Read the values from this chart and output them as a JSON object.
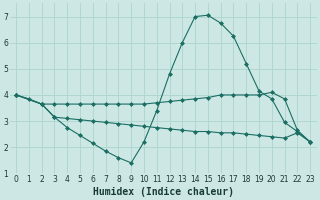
{
  "xlabel": "Humidex (Indice chaleur)",
  "bg_color": "#cde8e4",
  "grid_color": "#b0d8d0",
  "line_color": "#1a6e64",
  "xlim": [
    -0.5,
    23.5
  ],
  "ylim": [
    1,
    7.5
  ],
  "line1": {
    "x": [
      0,
      1,
      2,
      3,
      4,
      5,
      6,
      7,
      8,
      9,
      10,
      11,
      12,
      13,
      14,
      15,
      16,
      17,
      18,
      19,
      20,
      21,
      22,
      23
    ],
    "y": [
      4.0,
      3.85,
      3.65,
      3.15,
      2.75,
      2.45,
      2.15,
      1.85,
      1.6,
      1.4,
      2.2,
      3.4,
      4.8,
      6.0,
      7.0,
      7.05,
      6.75,
      6.25,
      5.2,
      4.15,
      3.85,
      2.95,
      2.6,
      2.2
    ]
  },
  "line2": {
    "x": [
      0,
      2,
      3,
      4,
      5,
      6,
      7,
      8,
      9,
      10,
      11,
      12,
      13,
      14,
      15,
      16,
      17,
      18,
      19,
      20,
      21,
      22,
      23
    ],
    "y": [
      4.0,
      3.65,
      3.65,
      3.65,
      3.65,
      3.65,
      3.65,
      3.65,
      3.65,
      3.65,
      3.7,
      3.75,
      3.8,
      3.85,
      3.9,
      4.0,
      4.0,
      4.0,
      4.0,
      4.1,
      3.85,
      2.65,
      2.2
    ]
  },
  "line3": {
    "x": [
      0,
      2,
      3,
      4,
      5,
      6,
      7,
      8,
      9,
      10,
      11,
      12,
      13,
      14,
      15,
      16,
      17,
      18,
      19,
      20,
      21,
      22,
      23
    ],
    "y": [
      4.0,
      3.65,
      3.15,
      3.1,
      3.05,
      3.0,
      2.95,
      2.9,
      2.85,
      2.8,
      2.75,
      2.7,
      2.65,
      2.6,
      2.6,
      2.55,
      2.55,
      2.5,
      2.45,
      2.4,
      2.35,
      2.55,
      2.2
    ]
  },
  "xticks": [
    0,
    1,
    2,
    3,
    4,
    5,
    6,
    7,
    8,
    9,
    10,
    11,
    12,
    13,
    14,
    15,
    16,
    17,
    18,
    19,
    20,
    21,
    22,
    23
  ],
  "yticks": [
    1,
    2,
    3,
    4,
    5,
    6,
    7
  ],
  "tick_fontsize": 5.5,
  "xlabel_fontsize": 7.0
}
